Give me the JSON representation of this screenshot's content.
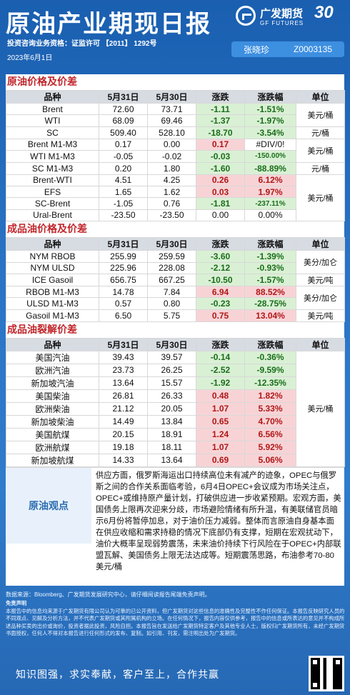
{
  "header": {
    "title": "原油产业期现日报",
    "logo_cn": "广发期货",
    "logo_en": "GF FUTURES",
    "anniv": "30",
    "license": "投资咨询业务资格：证监许可 【2011】 1292号",
    "date": "2023年6月1日",
    "analyst_name": "张晓珍",
    "analyst_id": "Z0003135"
  },
  "columns": [
    "品种",
    "5月31日",
    "5月30日",
    "涨跌",
    "涨跌幅",
    "单位"
  ],
  "section1": {
    "title": "原油价格及价差",
    "rows": [
      {
        "name": "Brent",
        "d1": "72.60",
        "d2": "73.71",
        "chg": "-1.11",
        "pct": "-1.51%",
        "chg_color": "green",
        "pct_color": "green"
      },
      {
        "name": "WTI",
        "d1": "68.09",
        "d2": "69.46",
        "chg": "-1.37",
        "pct": "-1.97%",
        "chg_color": "green",
        "pct_color": "green"
      },
      {
        "name": "SC",
        "d1": "509.40",
        "d2": "528.10",
        "chg": "-18.70",
        "pct": "-3.54%",
        "chg_color": "green",
        "pct_color": "green"
      },
      {
        "name": "Brent  M1-M3",
        "d1": "0.17",
        "d2": "0.00",
        "chg": "0.17",
        "pct": "#DIV/0!",
        "chg_color": "red",
        "pct_color": "white"
      },
      {
        "name": "WTI  M1-M3",
        "d1": "-0.05",
        "d2": "-0.02",
        "chg": "-0.03",
        "pct": "-150.00%",
        "chg_color": "green",
        "pct_color": "green"
      },
      {
        "name": "SC  M1-M3",
        "d1": "0.20",
        "d2": "1.80",
        "chg": "-1.60",
        "pct": "-88.89%",
        "chg_color": "green",
        "pct_color": "green"
      },
      {
        "name": "Brent-WTI",
        "d1": "4.51",
        "d2": "4.25",
        "chg": "0.26",
        "pct": "6.12%",
        "chg_color": "red",
        "pct_color": "red"
      },
      {
        "name": "EFS",
        "d1": "1.65",
        "d2": "1.62",
        "chg": "0.03",
        "pct": "1.97%",
        "chg_color": "red",
        "pct_color": "red"
      },
      {
        "name": "SC-Brent",
        "d1": "-1.05",
        "d2": "0.76",
        "chg": "-1.81",
        "pct": "-237.11%",
        "chg_color": "green",
        "pct_color": "green"
      },
      {
        "name": "Ural-Brent",
        "d1": "-23.50",
        "d2": "-23.50",
        "chg": "0.00",
        "pct": "0.00%",
        "chg_color": "white",
        "pct_color": "white"
      }
    ],
    "units": [
      {
        "label": "美元/桶",
        "span": 2
      },
      {
        "label": "元/桶",
        "span": 1
      },
      {
        "label": "美元/桶",
        "span": 2
      },
      {
        "label": "元/桶",
        "span": 1
      },
      {
        "label": "美元/桶",
        "span": 4
      }
    ]
  },
  "section2": {
    "title": "成品油价格及价差",
    "rows": [
      {
        "name": "NYM RBOB",
        "d1": "255.99",
        "d2": "259.59",
        "chg": "-3.60",
        "pct": "-1.39%",
        "chg_color": "green",
        "pct_color": "green"
      },
      {
        "name": "NYM ULSD",
        "d1": "225.96",
        "d2": "228.08",
        "chg": "-2.12",
        "pct": "-0.93%",
        "chg_color": "green",
        "pct_color": "green"
      },
      {
        "name": "ICE Gasoil",
        "d1": "656.75",
        "d2": "667.25",
        "chg": "-10.50",
        "pct": "-1.57%",
        "chg_color": "green",
        "pct_color": "green"
      },
      {
        "name": "RBOB  M1-M3",
        "d1": "14.78",
        "d2": "7.84",
        "chg": "6.94",
        "pct": "88.52%",
        "chg_color": "red",
        "pct_color": "red"
      },
      {
        "name": "ULSD  M1-M3",
        "d1": "0.57",
        "d2": "0.80",
        "chg": "-0.23",
        "pct": "-28.75%",
        "chg_color": "green",
        "pct_color": "green"
      },
      {
        "name": "Gasoil  M1-M3",
        "d1": "6.50",
        "d2": "5.75",
        "chg": "0.75",
        "pct": "13.04%",
        "chg_color": "red",
        "pct_color": "red"
      }
    ],
    "units": [
      {
        "label": "美分/加仑",
        "span": 2
      },
      {
        "label": "美元/吨",
        "span": 1
      },
      {
        "label": "美分/加仑",
        "span": 2
      },
      {
        "label": "美元/吨",
        "span": 1
      }
    ]
  },
  "section3": {
    "title": "成品油裂解价差",
    "rows": [
      {
        "name": "美国汽油",
        "d1": "39.43",
        "d2": "39.57",
        "chg": "-0.14",
        "pct": "-0.36%",
        "chg_color": "green",
        "pct_color": "green"
      },
      {
        "name": "欧洲汽油",
        "d1": "23.73",
        "d2": "26.25",
        "chg": "-2.52",
        "pct": "-9.59%",
        "chg_color": "green",
        "pct_color": "green"
      },
      {
        "name": "新加坡汽油",
        "d1": "13.64",
        "d2": "15.57",
        "chg": "-1.92",
        "pct": "-12.35%",
        "chg_color": "green",
        "pct_color": "green"
      },
      {
        "name": "美国柴油",
        "d1": "26.81",
        "d2": "26.33",
        "chg": "0.48",
        "pct": "1.82%",
        "chg_color": "red",
        "pct_color": "red"
      },
      {
        "name": "欧洲柴油",
        "d1": "21.12",
        "d2": "20.05",
        "chg": "1.07",
        "pct": "5.33%",
        "chg_color": "red",
        "pct_color": "red"
      },
      {
        "name": "新加坡柴油",
        "d1": "14.49",
        "d2": "13.84",
        "chg": "0.65",
        "pct": "4.70%",
        "chg_color": "red",
        "pct_color": "red"
      },
      {
        "name": "美国航煤",
        "d1": "20.15",
        "d2": "18.91",
        "chg": "1.24",
        "pct": "6.56%",
        "chg_color": "red",
        "pct_color": "red"
      },
      {
        "name": "欧洲航煤",
        "d1": "19.18",
        "d2": "18.11",
        "chg": "1.07",
        "pct": "5.92%",
        "chg_color": "red",
        "pct_color": "red"
      },
      {
        "name": "新加坡航煤",
        "d1": "14.33",
        "d2": "13.64",
        "chg": "0.69",
        "pct": "5.06%",
        "chg_color": "red",
        "pct_color": "red"
      }
    ],
    "units": [
      {
        "label": "美元/桶",
        "span": 9
      }
    ]
  },
  "view": {
    "label": "原油观点",
    "text": "供应方面，俄罗斯海运出口持续高位未有减产的迹象，OPEC与俄罗斯之间的合作关系面临考验，6月4日OPEC+会议成为市场关注点，OPEC+或维持原产量计划，打破供应进一步收紧预期。宏观方面，美国债务上限再次迎来分歧，市场避险情绪有所升温，有美联储官员暗示6月份将暂停加息，对于油价压力减弱。整体而言原油自身基本面在供应收缩和需求持稳的情况下底部仍有支撑，短期在宏观扰动下，油价大概率呈现弱势震荡，未来油价持续下行风险在于OPEC+内部联盟瓦解、美国债务上限无法达成等。短期震荡思路，布油参考70-80美元/桶"
  },
  "footer": {
    "source": "数据来源：Bloomberg、广发期货发展研究中心，请仔细阅读报告尾端免责声明。",
    "disclaimer_title": "免责声明",
    "disclaimer": "本报告中的信息均来源于广发期货有限公司认为可靠的已公开资料，但广发期货对这些信息的准确性及完整性不作任何保证。本报告反映研究人员的不同观点、见解及分析方法，并不代表广发期货或其附属机构的立场。在任何情况下，报告内容仅供参考，报告中的信息或所表达的意见并不构成所述品种买卖的出价或询价，投资者据此投资，风险自担。本报告旨在发送给广发期货特定客户及其他专业人士，版权归广发期货所有，未经广发期货书面授权，任何人不得对本报告进行任何形式的发布、复制。如引用、刊发，需注明出处为广发期货。",
    "slogan": "知识图强，求实奉献，客户至上，合作共赢"
  }
}
